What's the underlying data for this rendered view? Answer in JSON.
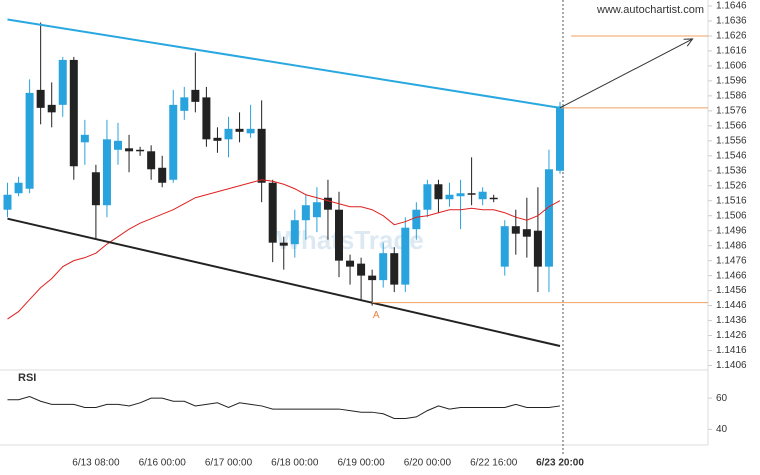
{
  "chart_data": {
    "type": "candlestick",
    "source": "www.autochartist.com",
    "watermark": "WhatsTrade",
    "categories": [
      null,
      null,
      null,
      null,
      null,
      null,
      null,
      null,
      "6/13 08:00",
      null,
      null,
      null,
      null,
      null,
      "6/16 00:00",
      null,
      null,
      null,
      null,
      null,
      "6/17 00:00",
      null,
      null,
      null,
      null,
      null,
      "6/18 00:00",
      null,
      null,
      null,
      null,
      null,
      "6/19 00:00",
      null,
      null,
      null,
      null,
      null,
      "6/20 00:00",
      null,
      null,
      null,
      null,
      null,
      "6/22 16:00",
      null,
      null,
      null,
      null,
      null,
      "6/23 20:00"
    ],
    "open": [
      1.151,
      1.1521,
      1.1524,
      1.159,
      1.158,
      1.158,
      1.161,
      1.1555,
      1.1535,
      1.1513,
      1.155,
      1.1551,
      1.155,
      1.1549,
      1.1538,
      1.153,
      1.1576,
      1.159,
      1.1585,
      1.1558,
      1.1557,
      1.1564,
      1.1561,
      1.1564,
      1.1528,
      1.1488,
      1.1487,
      1.1503,
      1.1505,
      1.1518,
      1.151,
      1.1476,
      1.1474,
      1.1466,
      1.1463,
      1.1481,
      1.146,
      1.1497,
      1.151,
      1.1527,
      1.1517,
      1.1519,
      1.1521,
      1.1517,
      1.1518,
      1.1472,
      1.1499,
      1.1497,
      1.1496,
      1.1472,
      1.1536
    ],
    "high": [
      1.1528,
      1.1532,
      1.1597,
      1.1635,
      1.1595,
      1.1612,
      1.1612,
      1.157,
      1.154,
      1.157,
      1.1568,
      1.156,
      1.1552,
      1.1553,
      1.1546,
      1.159,
      1.1592,
      1.1615,
      1.1592,
      1.1565,
      1.1572,
      1.1575,
      1.158,
      1.1583,
      1.153,
      1.1492,
      1.151,
      1.152,
      1.1525,
      1.153,
      1.1522,
      1.148,
      1.1478,
      1.147,
      1.1488,
      1.1485,
      1.1505,
      1.1515,
      1.153,
      1.153,
      1.1528,
      1.153,
      1.1545,
      1.1525,
      1.152,
      1.1503,
      1.151,
      1.1518,
      1.1525,
      1.155,
      1.1582
    ],
    "low": [
      1.1505,
      1.1519,
      1.1521,
      1.1567,
      1.1565,
      1.1572,
      1.153,
      1.154,
      1.149,
      1.1505,
      1.154,
      1.1535,
      1.1546,
      1.153,
      1.1525,
      1.1528,
      1.157,
      1.1575,
      1.1552,
      1.1548,
      1.1545,
      1.1555,
      1.1558,
      1.1515,
      1.1475,
      1.147,
      1.1478,
      1.149,
      1.1495,
      1.149,
      1.1465,
      1.146,
      1.145,
      1.1446,
      1.1458,
      1.1455,
      1.1455,
      1.149,
      1.1505,
      1.1508,
      1.1512,
      1.1497,
      1.1513,
      1.1513,
      1.1515,
      1.1466,
      1.148,
      1.1478,
      1.1455,
      1.1455,
      1.1534
    ],
    "close": [
      1.152,
      1.1528,
      1.1588,
      1.1578,
      1.1575,
      1.161,
      1.1539,
      1.156,
      1.1513,
      1.1557,
      1.1556,
      1.1549,
      1.1549,
      1.1537,
      1.1528,
      1.158,
      1.1585,
      1.1582,
      1.1557,
      1.1556,
      1.1564,
      1.1562,
      1.1564,
      1.1528,
      1.1488,
      1.1486,
      1.1503,
      1.1513,
      1.1515,
      1.151,
      1.1476,
      1.1472,
      1.1466,
      1.1463,
      1.1481,
      1.146,
      1.1498,
      1.151,
      1.1527,
      1.1517,
      1.152,
      1.1521,
      1.152,
      1.1522,
      1.1517,
      1.1499,
      1.1494,
      1.1492,
      1.1472,
      1.1537,
      1.1579
    ],
    "up_color": "#29a3dd",
    "down_color": "#222222",
    "ylim": [
      1.1403,
      1.165
    ],
    "yticks": [
      1.1406,
      1.1416,
      1.1426,
      1.1436,
      1.1446,
      1.1456,
      1.1466,
      1.1476,
      1.1486,
      1.1496,
      1.1506,
      1.1516,
      1.1526,
      1.1536,
      1.1546,
      1.1556,
      1.1566,
      1.1576,
      1.1586,
      1.1596,
      1.1606,
      1.1616,
      1.1626,
      1.1636,
      1.1646
    ],
    "ma": {
      "color": "#e02020",
      "values": [
        1.1437,
        1.1442,
        1.145,
        1.1458,
        1.1464,
        1.1472,
        1.1476,
        1.1478,
        1.1481,
        1.1487,
        1.1492,
        1.1497,
        1.1501,
        1.1504,
        1.1507,
        1.151,
        1.1514,
        1.1518,
        1.152,
        1.1522,
        1.1524,
        1.1526,
        1.1528,
        1.153,
        1.1529,
        1.1527,
        1.1524,
        1.152,
        1.1518,
        1.1516,
        1.1514,
        1.1512,
        1.1512,
        1.151,
        1.1506,
        1.15,
        1.1502,
        1.1505,
        1.1506,
        1.1508,
        1.151,
        1.151,
        1.1511,
        1.151,
        1.151,
        1.1508,
        1.1505,
        1.1503,
        1.1506,
        1.1512,
        1.1516
      ]
    },
    "trendlines": [
      {
        "color": "#29a8e0",
        "x": [
          0,
          50
        ],
        "y": [
          1.1637,
          1.1578
        ]
      },
      {
        "color": "#222222",
        "x": [
          0,
          50
        ],
        "y": [
          1.1504,
          1.1419
        ]
      }
    ],
    "levels": [
      {
        "color": "#f0a060",
        "value": 1.1626,
        "start": 51
      },
      {
        "color": "#f0a060",
        "value": 1.1578,
        "start": 50
      },
      {
        "color": "#f0a060",
        "value": 1.1448,
        "start": 33
      }
    ],
    "arrow": {
      "color": "#333333",
      "x": [
        50,
        62
      ],
      "y": [
        1.1578,
        1.1624
      ]
    },
    "point_label": {
      "text": "A",
      "x": 33,
      "y": 1.1446,
      "color": "#f08040"
    },
    "rsi": {
      "label": "RSI",
      "color": "#222222",
      "ylim": [
        30,
        78
      ],
      "yticks": [
        40,
        60
      ],
      "values": [
        59,
        59,
        61,
        58,
        56,
        56,
        56,
        54,
        54,
        56,
        56,
        55,
        57,
        60,
        60,
        58,
        58,
        55,
        56,
        57,
        54,
        57,
        56,
        55,
        53,
        53,
        53,
        53,
        53,
        53,
        53,
        52,
        51,
        51,
        50,
        47,
        47,
        48,
        52,
        55,
        53,
        54,
        54,
        54,
        54,
        54,
        56,
        54,
        54,
        54,
        55
      ]
    }
  }
}
